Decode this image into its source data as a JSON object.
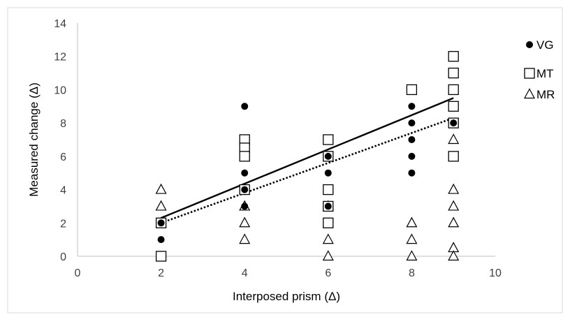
{
  "chart_data": {
    "type": "scatter",
    "xlabel": "Interposed prism (Δ)",
    "ylabel": "Measured change (Δ)",
    "xlim": [
      0,
      10
    ],
    "ylim": [
      0,
      14
    ],
    "x_ticks": [
      0,
      2,
      4,
      6,
      8,
      10
    ],
    "y_ticks": [
      0,
      2,
      4,
      6,
      8,
      10,
      12,
      14
    ],
    "grid": false,
    "legend_position": "right",
    "series": [
      {
        "name": "VG",
        "marker": "filled-circle",
        "color": "#000000",
        "points": [
          [
            2,
            1
          ],
          [
            2,
            2
          ],
          [
            4,
            9
          ],
          [
            4,
            5
          ],
          [
            4,
            4
          ],
          [
            4,
            3
          ],
          [
            6,
            6
          ],
          [
            6,
            5
          ],
          [
            6,
            3
          ],
          [
            8,
            9
          ],
          [
            8,
            8
          ],
          [
            8,
            7
          ],
          [
            8,
            6
          ],
          [
            8,
            5
          ],
          [
            9,
            8
          ]
        ]
      },
      {
        "name": "MT",
        "marker": "open-square",
        "color": "#000000",
        "points": [
          [
            2,
            2
          ],
          [
            2,
            0
          ],
          [
            4,
            7
          ],
          [
            4,
            6.5
          ],
          [
            4,
            6
          ],
          [
            4,
            4
          ],
          [
            6,
            7
          ],
          [
            6,
            6
          ],
          [
            6,
            4
          ],
          [
            6,
            3
          ],
          [
            6,
            2
          ],
          [
            8,
            10
          ],
          [
            9,
            12
          ],
          [
            9,
            11
          ],
          [
            9,
            10
          ],
          [
            9,
            9
          ],
          [
            9,
            8
          ],
          [
            9,
            6
          ]
        ]
      },
      {
        "name": "MR",
        "marker": "open-triangle",
        "color": "#000000",
        "points": [
          [
            2,
            4
          ],
          [
            2,
            3
          ],
          [
            2,
            2
          ],
          [
            4,
            3
          ],
          [
            4,
            2
          ],
          [
            4,
            1
          ],
          [
            6,
            3
          ],
          [
            6,
            1
          ],
          [
            6,
            0
          ],
          [
            8,
            2
          ],
          [
            8,
            1
          ],
          [
            8,
            0
          ],
          [
            9,
            7
          ],
          [
            9,
            4
          ],
          [
            9,
            3
          ],
          [
            9,
            2
          ],
          [
            9,
            0.5
          ],
          [
            9,
            0
          ]
        ]
      }
    ],
    "trendlines": [
      {
        "style": "solid",
        "color": "#000000",
        "x": [
          2,
          9
        ],
        "y": [
          2.3,
          9.5
        ]
      },
      {
        "style": "dotted",
        "color": "#000000",
        "x": [
          2,
          9
        ],
        "y": [
          2.0,
          8.3
        ]
      }
    ]
  }
}
